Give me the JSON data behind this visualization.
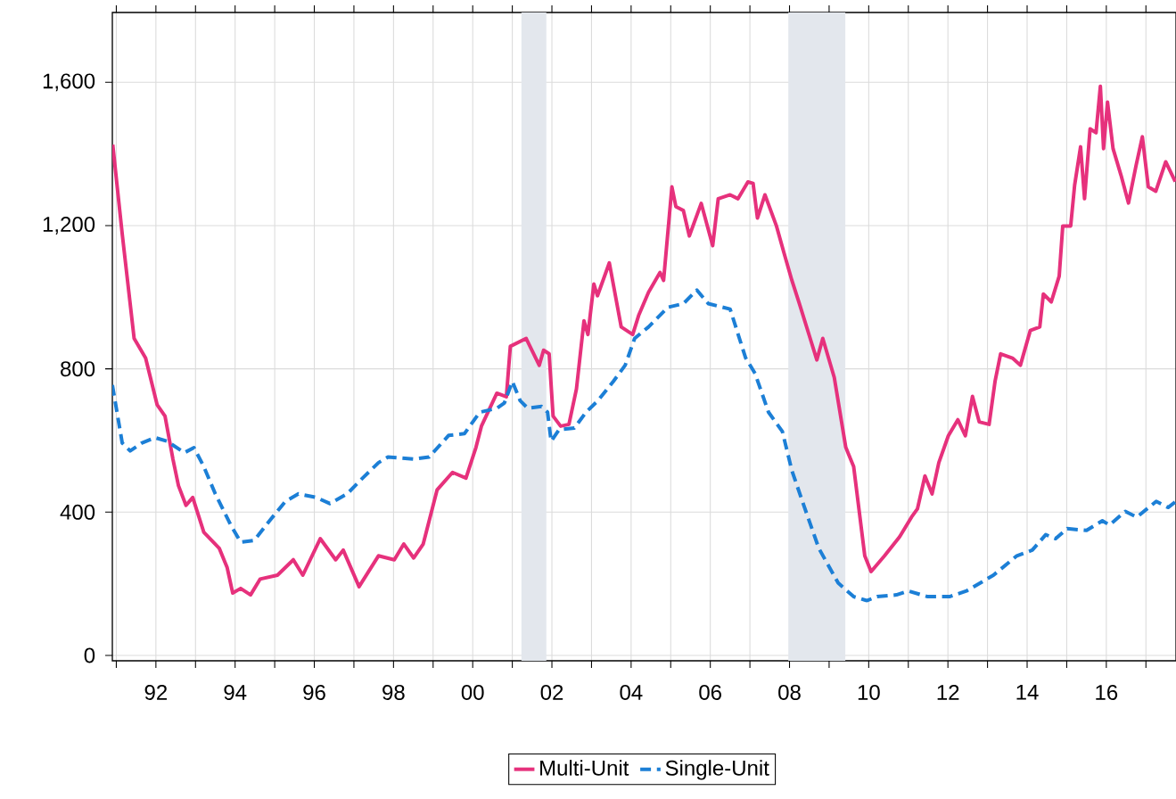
{
  "chart_data": {
    "type": "line",
    "xlim": [
      1990.9,
      2017.76
    ],
    "ylim": [
      -15,
      1795
    ],
    "xticks": [
      {
        "value": 1991,
        "label": null
      },
      {
        "value": 1992,
        "label": "92"
      },
      {
        "value": 1993,
        "label": null
      },
      {
        "value": 1994,
        "label": "94"
      },
      {
        "value": 1995,
        "label": null
      },
      {
        "value": 1996,
        "label": "96"
      },
      {
        "value": 1997,
        "label": null
      },
      {
        "value": 1998,
        "label": "98"
      },
      {
        "value": 1999,
        "label": null
      },
      {
        "value": 2000,
        "label": "00"
      },
      {
        "value": 2001,
        "label": null
      },
      {
        "value": 2002,
        "label": "02"
      },
      {
        "value": 2003,
        "label": null
      },
      {
        "value": 2004,
        "label": "04"
      },
      {
        "value": 2005,
        "label": null
      },
      {
        "value": 2006,
        "label": "06"
      },
      {
        "value": 2007,
        "label": null
      },
      {
        "value": 2008,
        "label": "08"
      },
      {
        "value": 2009,
        "label": null
      },
      {
        "value": 2010,
        "label": "10"
      },
      {
        "value": 2011,
        "label": null
      },
      {
        "value": 2012,
        "label": "12"
      },
      {
        "value": 2013,
        "label": null
      },
      {
        "value": 2014,
        "label": "14"
      },
      {
        "value": 2015,
        "label": null
      },
      {
        "value": 2016,
        "label": "16"
      },
      {
        "value": 2017,
        "label": null
      }
    ],
    "yticks": [
      0,
      400,
      800,
      {
        "value": 1200,
        "label": "1,200"
      },
      {
        "value": 1600,
        "label": "1,600"
      }
    ],
    "grid": true,
    "legend": "bottom",
    "bands": [
      {
        "axis": "x",
        "from": 2001.23,
        "to": 2001.86,
        "color": "#e3e7ed"
      },
      {
        "axis": "x",
        "from": 2007.97,
        "to": 2009.41,
        "color": "#e3e7ed"
      }
    ],
    "series": [
      {
        "name": "Multi-Unit",
        "color": "#e6317c",
        "line_style": "solid",
        "x": [
          1990.91,
          1991.15,
          1991.45,
          1991.74,
          1992.03,
          1992.23,
          1992.43,
          1992.57,
          1992.76,
          1992.93,
          1993.21,
          1993.6,
          1993.8,
          1993.94,
          1994.14,
          1994.39,
          1994.63,
          1995.07,
          1995.47,
          1995.71,
          1996.15,
          1996.54,
          1996.73,
          1997.13,
          1997.62,
          1998.02,
          1998.26,
          1998.51,
          1998.75,
          1999.1,
          1999.49,
          1999.83,
          2000.08,
          2000.22,
          2000.61,
          2000.85,
          2000.95,
          2001.35,
          2001.68,
          2001.79,
          2001.93,
          2002.03,
          2002.22,
          2002.43,
          2002.62,
          2002.81,
          2002.91,
          2003.06,
          2003.15,
          2003.45,
          2003.75,
          2004.04,
          2004.19,
          2004.44,
          2004.73,
          2004.82,
          2005.03,
          2005.13,
          2005.32,
          2005.47,
          2005.77,
          2006.06,
          2006.2,
          2006.5,
          2006.7,
          2006.95,
          2007.08,
          2007.19,
          2007.38,
          2007.67,
          2007.86,
          2008.06,
          2008.25,
          2008.55,
          2008.69,
          2008.84,
          2009.13,
          2009.42,
          2009.62,
          2009.9,
          2010.06,
          2010.4,
          2010.78,
          2011.08,
          2011.23,
          2011.42,
          2011.6,
          2011.77,
          2012.01,
          2012.25,
          2012.44,
          2012.62,
          2012.79,
          2013.04,
          2013.19,
          2013.33,
          2013.63,
          2013.83,
          2014.08,
          2014.32,
          2014.41,
          2014.61,
          2014.81,
          2014.9,
          2015.1,
          2015.2,
          2015.35,
          2015.45,
          2015.59,
          2015.74,
          2015.85,
          2015.93,
          2016.03,
          2016.17,
          2016.37,
          2016.56,
          2016.75,
          2016.91,
          2017.06,
          2017.25,
          2017.5,
          2017.74
        ],
        "values": [
          1426,
          1176,
          885,
          830,
          700,
          668,
          548,
          474,
          419,
          441,
          344,
          299,
          245,
          174,
          187,
          169,
          213,
          224,
          267,
          224,
          326,
          267,
          294,
          192,
          278,
          267,
          311,
          272,
          311,
          462,
          511,
          495,
          580,
          640,
          732,
          722,
          863,
          885,
          810,
          852,
          842,
          668,
          640,
          645,
          744,
          934,
          896,
          1037,
          1004,
          1096,
          917,
          896,
          949,
          1014,
          1069,
          1047,
          1308,
          1253,
          1242,
          1171,
          1262,
          1144,
          1275,
          1286,
          1275,
          1322,
          1318,
          1221,
          1286,
          1199,
          1124,
          1047,
          982,
          875,
          825,
          885,
          776,
          581,
          527,
          278,
          234,
          278,
          331,
          386,
          409,
          501,
          451,
          538,
          613,
          658,
          613,
          723,
          652,
          645,
          765,
          842,
          830,
          810,
          907,
          917,
          1009,
          987,
          1059,
          1199,
          1199,
          1313,
          1420,
          1275,
          1470,
          1459,
          1589,
          1415,
          1545,
          1415,
          1341,
          1263,
          1367,
          1448,
          1308,
          1296,
          1378,
          1323
        ]
      },
      {
        "name": "Single-Unit",
        "color": "#1c7fd6",
        "line_style": "dashed",
        "x": [
          1990.9,
          1991.15,
          1991.35,
          1991.64,
          1991.98,
          1992.28,
          1992.72,
          1992.96,
          1993.21,
          1993.5,
          1993.89,
          1994.14,
          1994.48,
          1994.87,
          1995.27,
          1995.6,
          1996.05,
          1996.39,
          1996.83,
          1997.22,
          1997.62,
          1997.86,
          1998.51,
          1998.9,
          1999.39,
          1999.79,
          2000.18,
          2000.61,
          2000.8,
          2001.0,
          2001.2,
          2001.39,
          2001.74,
          2001.89,
          2001.98,
          2002.18,
          2002.57,
          2002.86,
          2003.16,
          2003.55,
          2003.85,
          2004.09,
          2004.44,
          2004.93,
          2005.32,
          2005.66,
          2005.95,
          2006.5,
          2006.89,
          2007.13,
          2007.47,
          2007.82,
          2008.06,
          2008.36,
          2008.74,
          2009.23,
          2009.62,
          2009.95,
          2010.21,
          2010.7,
          2011.0,
          2011.49,
          2012.04,
          2012.47,
          2013.15,
          2013.74,
          2014.13,
          2014.47,
          2014.72,
          2015.01,
          2015.5,
          2015.9,
          2016.08,
          2016.48,
          2016.77,
          2017.26,
          2017.56,
          2017.76
        ],
        "values": [
          755,
          593,
          571,
          593,
          608,
          598,
          566,
          580,
          527,
          451,
          364,
          316,
          321,
          376,
          430,
          451,
          441,
          424,
          451,
          495,
          538,
          554,
          548,
          554,
          614,
          619,
          679,
          690,
          705,
          765,
          711,
          690,
          695,
          679,
          598,
          630,
          635,
          679,
          711,
          765,
          810,
          885,
          917,
          972,
          982,
          1020,
          982,
          967,
          831,
          787,
          679,
          625,
          516,
          419,
          299,
          202,
          164,
          153,
          164,
          169,
          180,
          164,
          164,
          180,
          224,
          278,
          294,
          337,
          326,
          354,
          349,
          376,
          364,
          402,
          386,
          430,
          413,
          430
        ]
      }
    ]
  }
}
